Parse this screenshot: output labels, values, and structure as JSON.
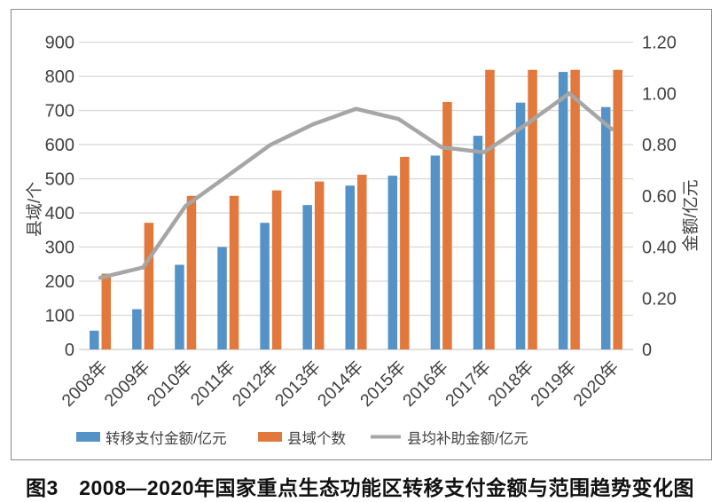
{
  "figure": {
    "caption": "图3　2008—2020年国家重点生态功能区转移支付金额与范围趋势变化图"
  },
  "chart_data": {
    "type": "bar",
    "subtype": "grouped-bar-with-line-combo",
    "title": "",
    "categories": [
      "2008年",
      "2009年",
      "2010年",
      "2011年",
      "2012年",
      "2013年",
      "2014年",
      "2015年",
      "2016年",
      "2017年",
      "2018年",
      "2019年",
      "2020年"
    ],
    "series": [
      {
        "name": "转移支付金额/亿元",
        "kind": "bar",
        "axis": "left",
        "color": "#5592C8",
        "values": [
          55,
          118,
          248,
          300,
          371,
          423,
          480,
          509,
          568,
          626,
          723,
          813,
          710
        ]
      },
      {
        "name": "县域个数",
        "kind": "bar",
        "axis": "left",
        "color": "#E2783C",
        "values": [
          222,
          371,
          450,
          450,
          466,
          492,
          512,
          564,
          725,
          819,
          819,
          819,
          819
        ]
      },
      {
        "name": "县均补助金额/亿元",
        "kind": "line",
        "axis": "right",
        "color": "#A6A6A6",
        "values": [
          0.28,
          0.32,
          0.56,
          0.68,
          0.8,
          0.88,
          0.94,
          0.9,
          0.79,
          0.77,
          0.88,
          1.0,
          0.86
        ]
      }
    ],
    "left_axis": {
      "title": "县域/个",
      "min": 0,
      "max": 900,
      "step": 100
    },
    "right_axis": {
      "title": "金额/亿元",
      "min": 0,
      "max": 1.2,
      "step": 0.2
    },
    "grid": true,
    "legend_position": "bottom",
    "x_tick_rotation": -45
  },
  "style": {
    "gridline_color": "#D9D9D9",
    "baseline_color": "#C9C9C9",
    "tick_text_color": "#404040",
    "bar_blue": "#5592C8",
    "bar_orange": "#E2783C",
    "line_gray": "#A6A6A6"
  }
}
